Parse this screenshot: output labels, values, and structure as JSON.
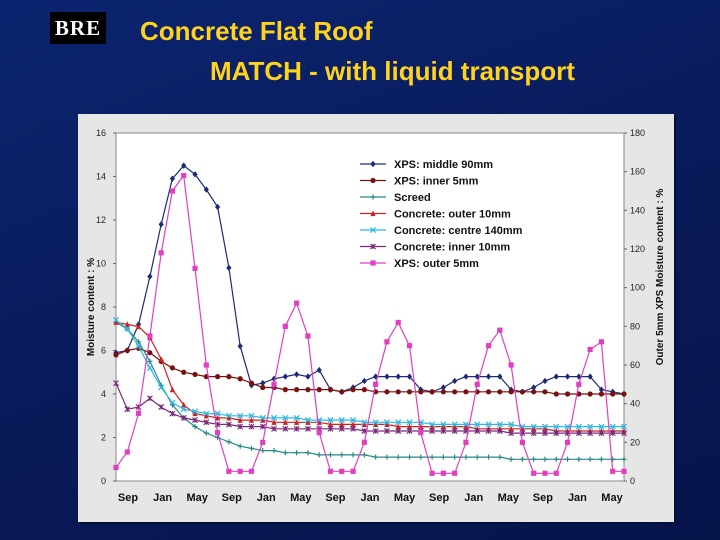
{
  "header": {
    "logo_text": "BRE",
    "title_line1": "Concrete Flat Roof",
    "title_line2": "MATCH - with liquid transport"
  },
  "colors": {
    "background": "#0a1a5a",
    "title": "#ffd21e",
    "plot_area": "#ffffff",
    "panel": "#e6e6e6"
  },
  "chart_data": {
    "type": "line",
    "title": "",
    "xlabel": "",
    "ylabel": "Moisture content : %",
    "y2label": "Outer 5mm XPS Moisture content : %",
    "ylim": [
      0,
      16
    ],
    "y2lim": [
      0,
      180
    ],
    "yticks": [
      0,
      2,
      4,
      6,
      8,
      10,
      12,
      14,
      16
    ],
    "y2ticks": [
      0,
      20,
      40,
      60,
      80,
      100,
      120,
      140,
      160,
      180
    ],
    "xlim": [
      0,
      45
    ],
    "xticks": [
      "Sep",
      "Jan",
      "May",
      "Sep",
      "Jan",
      "May",
      "Sep",
      "Jan",
      "May",
      "Sep",
      "Jan",
      "May",
      "Sep",
      "Jan",
      "May"
    ],
    "grid": false,
    "legend_position": "top-center",
    "series": [
      {
        "name": "XPS: middle 90mm",
        "axis": "left",
        "color": "#1c2a78",
        "marker": "diamond",
        "x": [
          0,
          1,
          2,
          3,
          4,
          5,
          6,
          7,
          8,
          9,
          10,
          11,
          12,
          13,
          14,
          15,
          16,
          17,
          18,
          19,
          20,
          21,
          22,
          23,
          24,
          25,
          26,
          27,
          28,
          29,
          30,
          31,
          32,
          33,
          34,
          35,
          36,
          37,
          38,
          39,
          40,
          41,
          42,
          43,
          44,
          45
        ],
        "values": [
          5.9,
          6,
          7.2,
          9.4,
          11.8,
          13.9,
          14.5,
          14.1,
          13.4,
          12.6,
          9.8,
          6.2,
          4.4,
          4.5,
          4.7,
          4.8,
          4.9,
          4.8,
          5.1,
          4.2,
          4.1,
          4.3,
          4.6,
          4.8,
          4.8,
          4.8,
          4.8,
          4.2,
          4.1,
          4.3,
          4.6,
          4.8,
          4.8,
          4.8,
          4.8,
          4.2,
          4.1,
          4.3,
          4.6,
          4.8,
          4.8,
          4.8,
          4.8,
          4.2,
          4.1,
          4
        ]
      },
      {
        "name": "XPS: inner 5mm",
        "axis": "left",
        "color": "#7a1010",
        "marker": "circle",
        "x": [
          0,
          1,
          2,
          3,
          4,
          5,
          6,
          7,
          8,
          9,
          10,
          11,
          12,
          13,
          14,
          15,
          16,
          17,
          18,
          19,
          20,
          21,
          22,
          23,
          24,
          25,
          26,
          27,
          28,
          29,
          30,
          31,
          32,
          33,
          34,
          35,
          36,
          37,
          38,
          39,
          40,
          41,
          42,
          43,
          44,
          45
        ],
        "values": [
          5.8,
          6,
          6.1,
          5.9,
          5.5,
          5.2,
          5,
          4.9,
          4.8,
          4.8,
          4.8,
          4.7,
          4.5,
          4.3,
          4.3,
          4.2,
          4.2,
          4.2,
          4.2,
          4.2,
          4.1,
          4.2,
          4.2,
          4.1,
          4.1,
          4.1,
          4.1,
          4.1,
          4.1,
          4.1,
          4.1,
          4.1,
          4.1,
          4.1,
          4.1,
          4.1,
          4.1,
          4.1,
          4.1,
          4,
          4,
          4,
          4,
          4,
          4,
          4
        ]
      },
      {
        "name": "Screed",
        "axis": "left",
        "color": "#2a8a8a",
        "marker": "plus",
        "x": [
          0,
          1,
          2,
          3,
          4,
          5,
          6,
          7,
          8,
          9,
          10,
          11,
          12,
          13,
          14,
          15,
          16,
          17,
          18,
          19,
          20,
          21,
          22,
          23,
          24,
          25,
          26,
          27,
          28,
          29,
          30,
          31,
          32,
          33,
          34,
          35,
          36,
          37,
          38,
          39,
          40,
          41,
          42,
          43,
          44,
          45
        ],
        "values": [
          7.3,
          7,
          6.4,
          5.5,
          4.4,
          3.5,
          2.9,
          2.5,
          2.2,
          2,
          1.8,
          1.6,
          1.5,
          1.4,
          1.4,
          1.3,
          1.3,
          1.3,
          1.2,
          1.2,
          1.2,
          1.2,
          1.2,
          1.1,
          1.1,
          1.1,
          1.1,
          1.1,
          1.1,
          1.1,
          1.1,
          1.1,
          1.1,
          1.1,
          1.1,
          1,
          1,
          1,
          1,
          1,
          1,
          1,
          1,
          1,
          1,
          1
        ]
      },
      {
        "name": "Concrete: outer 10mm",
        "axis": "left",
        "color": "#d02020",
        "marker": "triangle",
        "x": [
          0,
          1,
          2,
          3,
          4,
          5,
          6,
          7,
          8,
          9,
          10,
          11,
          12,
          13,
          14,
          15,
          16,
          17,
          18,
          19,
          20,
          21,
          22,
          23,
          24,
          25,
          26,
          27,
          28,
          29,
          30,
          31,
          32,
          33,
          34,
          35,
          36,
          37,
          38,
          39,
          40,
          41,
          42,
          43,
          44,
          45
        ],
        "values": [
          7.3,
          7.2,
          7.1,
          6.6,
          5.6,
          4.2,
          3.5,
          3.1,
          3,
          2.9,
          2.9,
          2.8,
          2.8,
          2.8,
          2.7,
          2.7,
          2.7,
          2.7,
          2.7,
          2.6,
          2.6,
          2.6,
          2.6,
          2.6,
          2.6,
          2.5,
          2.5,
          2.5,
          2.5,
          2.5,
          2.5,
          2.5,
          2.4,
          2.4,
          2.4,
          2.4,
          2.4,
          2.4,
          2.4,
          2.3,
          2.3,
          2.3,
          2.3,
          2.3,
          2.3,
          2.3
        ]
      },
      {
        "name": "Concrete: centre 140mm",
        "axis": "left",
        "color": "#30b8e0",
        "marker": "x",
        "x": [
          0,
          1,
          2,
          3,
          4,
          5,
          6,
          7,
          8,
          9,
          10,
          11,
          12,
          13,
          14,
          15,
          16,
          17,
          18,
          19,
          20,
          21,
          22,
          23,
          24,
          25,
          26,
          27,
          28,
          29,
          30,
          31,
          32,
          33,
          34,
          35,
          36,
          37,
          38,
          39,
          40,
          41,
          42,
          43,
          44,
          45
        ],
        "values": [
          7.4,
          7,
          6.2,
          5.2,
          4.3,
          3.6,
          3.3,
          3.2,
          3.1,
          3.1,
          3,
          3,
          3,
          2.9,
          2.9,
          2.9,
          2.9,
          2.8,
          2.8,
          2.8,
          2.8,
          2.8,
          2.7,
          2.7,
          2.7,
          2.7,
          2.7,
          2.7,
          2.6,
          2.6,
          2.6,
          2.6,
          2.6,
          2.6,
          2.6,
          2.6,
          2.5,
          2.5,
          2.5,
          2.5,
          2.5,
          2.5,
          2.5,
          2.5,
          2.5,
          2.5
        ]
      },
      {
        "name": "Concrete: inner 10mm",
        "axis": "left",
        "color": "#7a2a7a",
        "marker": "star",
        "x": [
          0,
          1,
          2,
          3,
          4,
          5,
          6,
          7,
          8,
          9,
          10,
          11,
          12,
          13,
          14,
          15,
          16,
          17,
          18,
          19,
          20,
          21,
          22,
          23,
          24,
          25,
          26,
          27,
          28,
          29,
          30,
          31,
          32,
          33,
          34,
          35,
          36,
          37,
          38,
          39,
          40,
          41,
          42,
          43,
          44,
          45
        ],
        "values": [
          4.5,
          3.3,
          3.4,
          3.8,
          3.4,
          3.1,
          2.9,
          2.8,
          2.7,
          2.6,
          2.6,
          2.5,
          2.5,
          2.5,
          2.4,
          2.4,
          2.4,
          2.4,
          2.4,
          2.4,
          2.4,
          2.4,
          2.3,
          2.3,
          2.3,
          2.3,
          2.3,
          2.3,
          2.3,
          2.3,
          2.3,
          2.3,
          2.3,
          2.3,
          2.3,
          2.2,
          2.2,
          2.2,
          2.2,
          2.2,
          2.2,
          2.2,
          2.2,
          2.2,
          2.2,
          2.2
        ]
      },
      {
        "name": "XPS: outer 5mm",
        "axis": "right",
        "color": "#e040c0",
        "marker": "square",
        "x": [
          0,
          1,
          2,
          3,
          4,
          5,
          6,
          7,
          8,
          9,
          10,
          11,
          12,
          13,
          14,
          15,
          16,
          17,
          18,
          19,
          20,
          21,
          22,
          23,
          24,
          25,
          26,
          27,
          28,
          29,
          30,
          31,
          32,
          33,
          34,
          35,
          36,
          37,
          38,
          39,
          40,
          41,
          42,
          43,
          44,
          45
        ],
        "values": [
          7,
          15,
          35,
          75,
          118,
          150,
          158,
          110,
          60,
          25,
          5,
          5,
          5,
          20,
          50,
          80,
          92,
          75,
          25,
          5,
          5,
          5,
          20,
          50,
          72,
          82,
          70,
          25,
          4,
          4,
          4,
          20,
          50,
          70,
          78,
          60,
          20,
          4,
          4,
          4,
          20,
          50,
          68,
          72,
          5,
          5
        ]
      }
    ]
  }
}
